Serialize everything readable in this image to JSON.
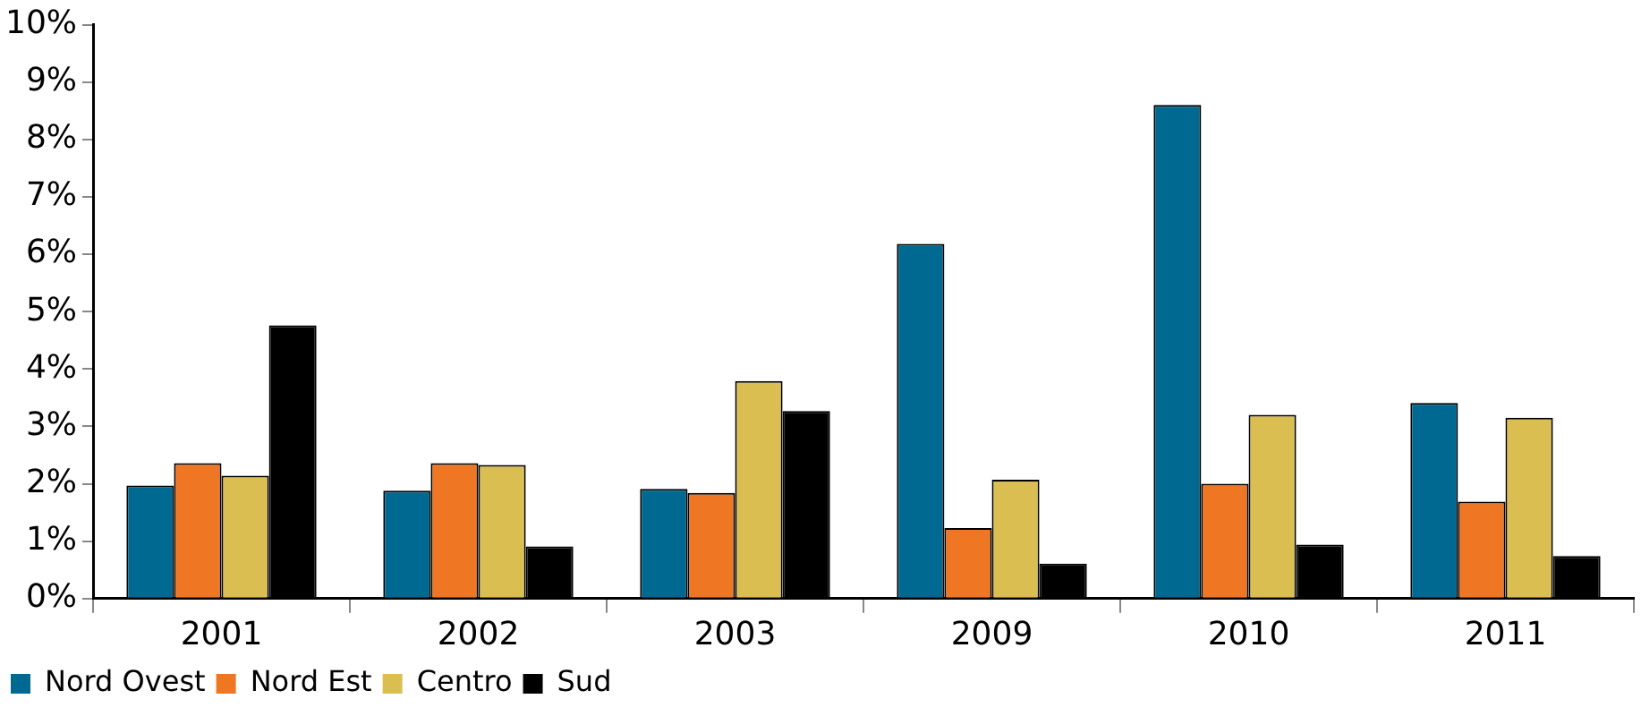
{
  "chart_data": {
    "type": "bar",
    "categories": [
      "2001",
      "2002",
      "2003",
      "2009",
      "2010",
      "2011"
    ],
    "series": [
      {
        "name": "Nord Ovest",
        "color": "#006991",
        "values": [
          1.97,
          1.88,
          1.91,
          6.18,
          8.6,
          3.41
        ]
      },
      {
        "name": "Nord Est",
        "color": "#ef7623",
        "values": [
          2.36,
          2.36,
          1.84,
          1.23,
          2.0,
          1.69
        ]
      },
      {
        "name": "Centro",
        "color": "#dbbe52",
        "values": [
          2.14,
          2.33,
          3.79,
          2.07,
          3.2,
          3.15
        ]
      },
      {
        "name": "Sud",
        "color": "#000000",
        "values": [
          4.76,
          0.91,
          3.27,
          0.61,
          0.94,
          0.74
        ]
      }
    ],
    "ylim": [
      0,
      10
    ],
    "yticks": [
      {
        "value": 0,
        "label": "0%"
      },
      {
        "value": 1,
        "label": "1%"
      },
      {
        "value": 2,
        "label": "2%"
      },
      {
        "value": 3,
        "label": "3%"
      },
      {
        "value": 4,
        "label": "4%"
      },
      {
        "value": 5,
        "label": "5%"
      },
      {
        "value": 6,
        "label": "6%"
      },
      {
        "value": 7,
        "label": "7%"
      },
      {
        "value": 8,
        "label": "8%"
      },
      {
        "value": 9,
        "label": "9%"
      },
      {
        "value": 10,
        "label": "10%"
      }
    ],
    "grid": false,
    "legend": "bottom left"
  }
}
